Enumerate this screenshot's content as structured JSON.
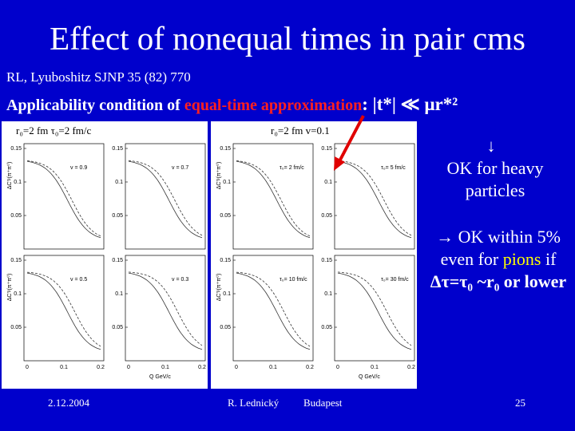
{
  "title": "Effect of nonequal times in pair cms",
  "reference": {
    "authors": "RL, Lyuboshitz ",
    "journal": "SJNP 35 (82) 770"
  },
  "condition": {
    "text": "Applicability condition of ",
    "highlight": "equal-time approximation",
    "formula": ":  |t*| ≪ μr*²"
  },
  "figures": [
    {
      "caption": "r₀=2 fm  τ₀=2 fm/c",
      "y_label": "ΔC'ᵖ(π⁺π⁰)",
      "x_label": "Q  GeV/c",
      "y_ticks": [
        "0.15",
        "0.1",
        "0.05"
      ],
      "x_ticks": [
        "0",
        "0.1",
        "0.2"
      ],
      "panels": [
        "v = 0.9",
        "v = 0.7",
        "v = 0.5",
        "v = 0.3"
      ]
    },
    {
      "caption": "r₀=2 fm  v=0.1",
      "y_label": "ΔC'ᵖ(π⁺π⁰)",
      "x_label": "Q  GeV/c",
      "y_ticks": [
        "0.15",
        "0.1",
        "0.05"
      ],
      "x_ticks": [
        "0",
        "0.1",
        "0.2"
      ],
      "panels": [
        "τ₀= 2 fm/c",
        "τ₀= 5 fm/c",
        "τ₀= 10 fm/c",
        "τ₀= 30 fm/c"
      ]
    }
  ],
  "notes": {
    "arrow_down": "↓",
    "heavy_1": "OK for heavy",
    "heavy_2": "particles",
    "within": "→ OK within 5%",
    "pions_pre": "even for ",
    "pions": "pions",
    "pions_post": " if",
    "condition": "Δτ=τ₀ ~r₀ or lower"
  },
  "footer": {
    "date": "2.12.2004",
    "author": "R. Lednický",
    "place": "Budapest",
    "page": "25"
  }
}
